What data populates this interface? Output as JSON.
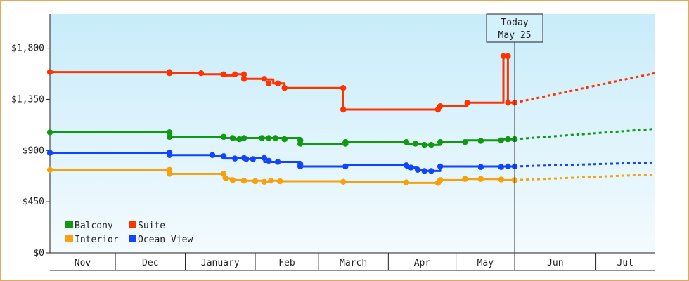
{
  "chart_data": {
    "type": "line",
    "title": "",
    "xlabel": "",
    "ylabel": "",
    "ylim": [
      0,
      2100
    ],
    "y_ticks": [
      {
        "value": 0,
        "label": "$0"
      },
      {
        "value": 450,
        "label": "$450"
      },
      {
        "value": 900,
        "label": "$900"
      },
      {
        "value": 1350,
        "label": "$1,350"
      },
      {
        "value": 1800,
        "label": "$1,800"
      }
    ],
    "x_range_days": [
      0,
      268
    ],
    "months": [
      {
        "label": "Nov",
        "start": 0,
        "end": 29
      },
      {
        "label": "Dec",
        "start": 29,
        "end": 60
      },
      {
        "label": "January",
        "start": 60,
        "end": 91
      },
      {
        "label": "Feb",
        "start": 91,
        "end": 119
      },
      {
        "label": "March",
        "start": 119,
        "end": 150
      },
      {
        "label": "Apr",
        "start": 150,
        "end": 180
      },
      {
        "label": "May",
        "start": 180,
        "end": 206
      },
      {
        "label": "Jun",
        "start": 206,
        "end": 242
      },
      {
        "label": "Jul",
        "start": 242,
        "end": 268
      }
    ],
    "today": {
      "x": 206,
      "line1": "Today",
      "line2": "May 25"
    },
    "legend": {
      "placement": "bottom-left"
    },
    "grid": false,
    "series": [
      {
        "name": "Suite",
        "color": "#ff3300",
        "points": [
          [
            0,
            1590
          ],
          [
            53,
            1590
          ],
          [
            53,
            1580
          ],
          [
            67,
            1580
          ],
          [
            67,
            1570
          ],
          [
            77,
            1570
          ],
          [
            77,
            1560
          ],
          [
            82,
            1560
          ],
          [
            82,
            1570
          ],
          [
            86,
            1570
          ],
          [
            86,
            1530
          ],
          [
            95,
            1530
          ],
          [
            95,
            1525
          ],
          [
            99,
            1525
          ],
          [
            99,
            1490
          ],
          [
            104,
            1490
          ],
          [
            104,
            1450
          ],
          [
            130,
            1450
          ],
          [
            130,
            1260
          ],
          [
            172,
            1260
          ],
          [
            172,
            1290
          ],
          [
            185,
            1290
          ],
          [
            185,
            1320
          ],
          [
            201,
            1320
          ],
          [
            201,
            1730
          ],
          [
            203,
            1730
          ],
          [
            203,
            1320
          ],
          [
            206,
            1320
          ]
        ],
        "markers": [
          [
            0,
            1590
          ],
          [
            53,
            1590
          ],
          [
            53,
            1580
          ],
          [
            67,
            1580
          ],
          [
            77,
            1570
          ],
          [
            82,
            1570
          ],
          [
            86,
            1570
          ],
          [
            86,
            1530
          ],
          [
            95,
            1530
          ],
          [
            97,
            1490
          ],
          [
            101,
            1490
          ],
          [
            104,
            1450
          ],
          [
            130,
            1450
          ],
          [
            130,
            1260
          ],
          [
            172,
            1260
          ],
          [
            173,
            1290
          ],
          [
            185,
            1320
          ],
          [
            201,
            1730
          ],
          [
            203,
            1730
          ],
          [
            203,
            1320
          ],
          [
            206,
            1320
          ]
        ],
        "projection": [
          [
            206,
            1320
          ],
          [
            268,
            1580
          ]
        ]
      },
      {
        "name": "Balcony",
        "color": "#119911",
        "points": [
          [
            0,
            1060
          ],
          [
            53,
            1060
          ],
          [
            53,
            1020
          ],
          [
            77,
            1020
          ],
          [
            77,
            1010
          ],
          [
            82,
            1010
          ],
          [
            82,
            1000
          ],
          [
            86,
            1000
          ],
          [
            86,
            1010
          ],
          [
            111,
            1010
          ],
          [
            111,
            960
          ],
          [
            131,
            960
          ],
          [
            131,
            975
          ],
          [
            158,
            975
          ],
          [
            158,
            960
          ],
          [
            166,
            960
          ],
          [
            166,
            950
          ],
          [
            173,
            950
          ],
          [
            173,
            975
          ],
          [
            184,
            975
          ],
          [
            184,
            990
          ],
          [
            200,
            990
          ],
          [
            200,
            1000
          ],
          [
            206,
            1000
          ]
        ],
        "markers": [
          [
            0,
            1060
          ],
          [
            53,
            1060
          ],
          [
            53,
            1020
          ],
          [
            77,
            1020
          ],
          [
            81,
            1010
          ],
          [
            84,
            1000
          ],
          [
            86,
            1010
          ],
          [
            94,
            1010
          ],
          [
            97,
            1010
          ],
          [
            100,
            1010
          ],
          [
            104,
            1000
          ],
          [
            111,
            990
          ],
          [
            111,
            960
          ],
          [
            131,
            960
          ],
          [
            131,
            975
          ],
          [
            158,
            975
          ],
          [
            162,
            960
          ],
          [
            166,
            950
          ],
          [
            169,
            950
          ],
          [
            173,
            975
          ],
          [
            184,
            975
          ],
          [
            191,
            985
          ],
          [
            200,
            990
          ],
          [
            203,
            1000
          ],
          [
            206,
            1000
          ]
        ],
        "projection": [
          [
            206,
            1000
          ],
          [
            268,
            1090
          ]
        ]
      },
      {
        "name": "Ocean View",
        "color": "#1144ff",
        "points": [
          [
            0,
            880
          ],
          [
            53,
            880
          ],
          [
            53,
            860
          ],
          [
            72,
            860
          ],
          [
            72,
            850
          ],
          [
            77,
            850
          ],
          [
            77,
            830
          ],
          [
            82,
            830
          ],
          [
            82,
            835
          ],
          [
            86,
            835
          ],
          [
            86,
            825
          ],
          [
            90,
            825
          ],
          [
            90,
            835
          ],
          [
            95,
            835
          ],
          [
            95,
            800
          ],
          [
            111,
            800
          ],
          [
            111,
            760
          ],
          [
            131,
            760
          ],
          [
            131,
            770
          ],
          [
            158,
            770
          ],
          [
            158,
            750
          ],
          [
            163,
            750
          ],
          [
            163,
            730
          ],
          [
            166,
            730
          ],
          [
            166,
            720
          ],
          [
            173,
            720
          ],
          [
            173,
            760
          ],
          [
            200,
            760
          ],
          [
            200,
            760
          ],
          [
            206,
            760
          ]
        ],
        "markers": [
          [
            0,
            880
          ],
          [
            53,
            880
          ],
          [
            53,
            860
          ],
          [
            72,
            860
          ],
          [
            77,
            850
          ],
          [
            82,
            830
          ],
          [
            86,
            835
          ],
          [
            87,
            825
          ],
          [
            90,
            825
          ],
          [
            95,
            835
          ],
          [
            97,
            810
          ],
          [
            101,
            800
          ],
          [
            111,
            780
          ],
          [
            111,
            760
          ],
          [
            131,
            760
          ],
          [
            158,
            770
          ],
          [
            160,
            750
          ],
          [
            163,
            730
          ],
          [
            166,
            720
          ],
          [
            169,
            720
          ],
          [
            173,
            760
          ],
          [
            191,
            755
          ],
          [
            200,
            755
          ],
          [
            203,
            760
          ],
          [
            206,
            760
          ]
        ],
        "projection": [
          [
            206,
            760
          ],
          [
            268,
            795
          ]
        ]
      },
      {
        "name": "Interior",
        "color": "#f7a10e",
        "points": [
          [
            0,
            730
          ],
          [
            53,
            730
          ],
          [
            53,
            695
          ],
          [
            77,
            695
          ],
          [
            77,
            655
          ],
          [
            81,
            655
          ],
          [
            81,
            640
          ],
          [
            86,
            640
          ],
          [
            86,
            635
          ],
          [
            95,
            635
          ],
          [
            95,
            625
          ],
          [
            97,
            625
          ],
          [
            97,
            635
          ],
          [
            101,
            635
          ],
          [
            101,
            630
          ],
          [
            130,
            630
          ],
          [
            130,
            625
          ],
          [
            158,
            625
          ],
          [
            158,
            615
          ],
          [
            173,
            615
          ],
          [
            173,
            640
          ],
          [
            184,
            640
          ],
          [
            184,
            650
          ],
          [
            200,
            650
          ],
          [
            200,
            640
          ],
          [
            206,
            640
          ]
        ],
        "markers": [
          [
            0,
            730
          ],
          [
            53,
            730
          ],
          [
            53,
            695
          ],
          [
            77,
            695
          ],
          [
            78,
            655
          ],
          [
            81,
            640
          ],
          [
            86,
            635
          ],
          [
            91,
            630
          ],
          [
            95,
            625
          ],
          [
            98,
            635
          ],
          [
            102,
            630
          ],
          [
            130,
            625
          ],
          [
            158,
            620
          ],
          [
            172,
            615
          ],
          [
            173,
            640
          ],
          [
            184,
            650
          ],
          [
            191,
            650
          ],
          [
            200,
            645
          ],
          [
            206,
            640
          ]
        ],
        "projection": [
          [
            206,
            640
          ],
          [
            268,
            690
          ]
        ]
      }
    ],
    "legend_rows": [
      [
        "Balcony",
        "Suite"
      ],
      [
        "Interior",
        "Ocean View"
      ]
    ]
  }
}
